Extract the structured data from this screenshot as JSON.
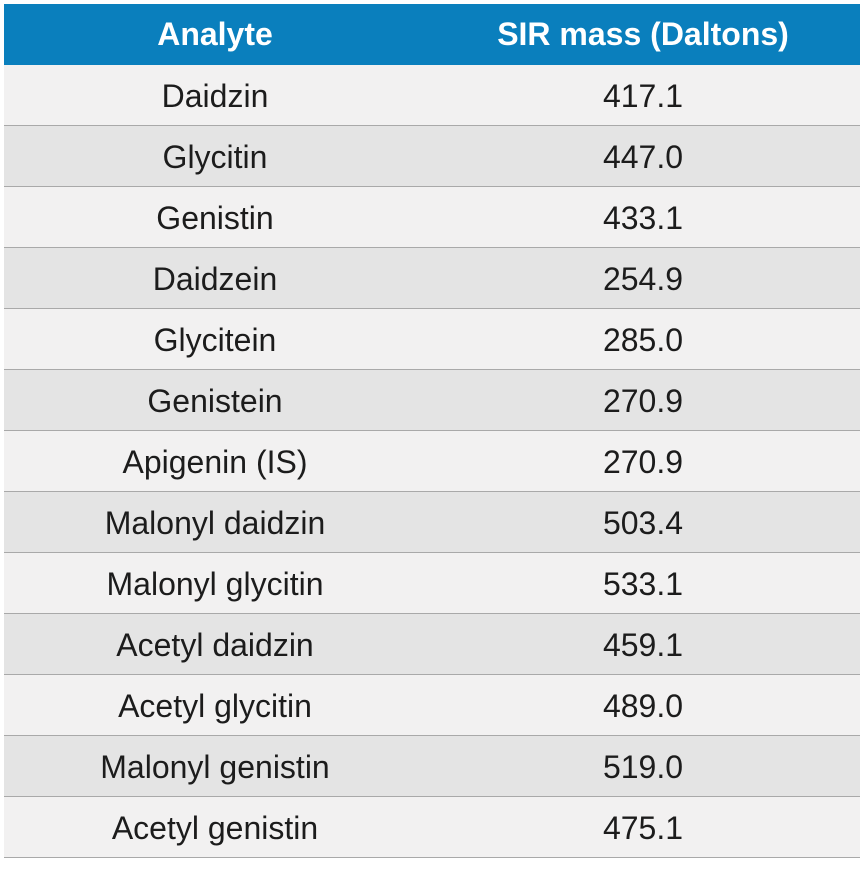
{
  "table": {
    "headers": {
      "analyte": "Analyte",
      "mass": "SIR mass (Daltons)"
    },
    "rows": [
      {
        "analyte": "Daidzin",
        "mass": "417.1"
      },
      {
        "analyte": "Glycitin",
        "mass": "447.0"
      },
      {
        "analyte": "Genistin",
        "mass": "433.1"
      },
      {
        "analyte": "Daidzein",
        "mass": "254.9"
      },
      {
        "analyte": "Glycitein",
        "mass": "285.0"
      },
      {
        "analyte": "Genistein",
        "mass": "270.9"
      },
      {
        "analyte": "Apigenin (IS)",
        "mass": "270.9"
      },
      {
        "analyte": "Malonyl daidzin",
        "mass": "503.4"
      },
      {
        "analyte": "Malonyl glycitin",
        "mass": "533.1"
      },
      {
        "analyte": "Acetyl daidzin",
        "mass": "459.1"
      },
      {
        "analyte": "Acetyl glycitin",
        "mass": "489.0"
      },
      {
        "analyte": "Malonyl genistin",
        "mass": "519.0"
      },
      {
        "analyte": "Acetyl genistin",
        "mass": "475.1"
      }
    ]
  },
  "colors": {
    "header_bg": "#0a7fbd",
    "header_text": "#ffffff",
    "row_light": "#f2f1f1",
    "row_dark": "#e4e4e4",
    "divider": "#a9a9a9",
    "text": "#1c1c1c"
  }
}
